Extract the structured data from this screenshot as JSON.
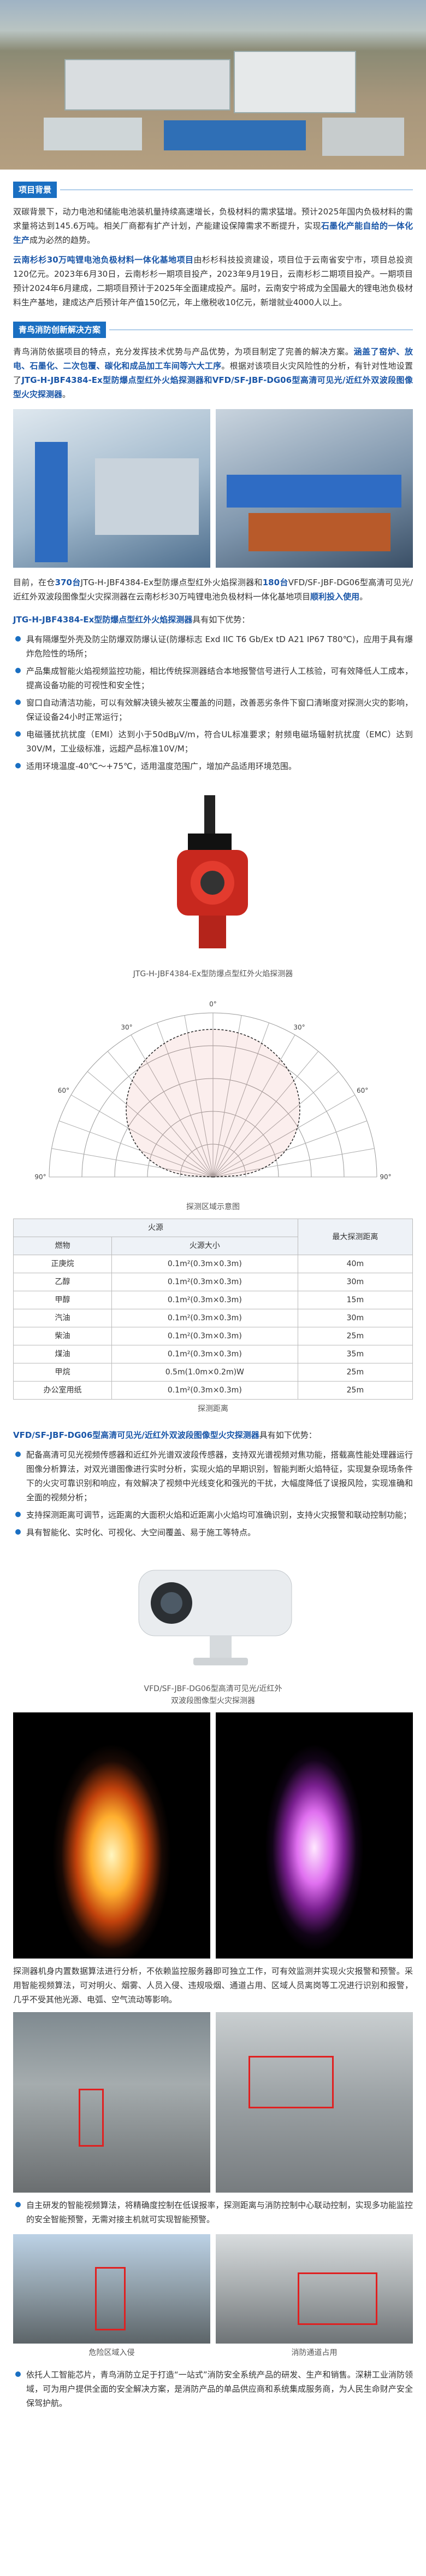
{
  "section1": {
    "tag": "项目背景"
  },
  "p1": {
    "parts": [
      {
        "t": "双碳背景下，动力电池和储能电池装机量持续高速增长，负极材料的需求猛增。预计2025年国内负极材料的需求量将达到145.6万吨。相关厂商都有扩产计划，产能建设保障需求不断提升，实现"
      },
      {
        "t": "石墨化产能自给的一体化生产",
        "b": true
      },
      {
        "t": "成为必然的趋势。"
      }
    ]
  },
  "p2": {
    "parts": [
      {
        "t": "云南杉杉30万吨锂电池负极材料一体化基地项目",
        "b": true
      },
      {
        "t": "由杉杉科技投资建设，项目位于云南省安宁市，项目总投资120亿元。2023年6月30日，云南杉杉一期项目投产，2023年9月19日，云南杉杉二期项目投产。一期项目预计2024年6月建成，二期项目预计于2025年全面建成投产。届时，云南安宁将成为全国最大的锂电池负极材料生产基地，建成达产后预计年产值150亿元，年上缴税收10亿元，新增就业4000人以上。"
      }
    ]
  },
  "section2": {
    "tag": "青鸟消防创新解决方案"
  },
  "p3": {
    "parts": [
      {
        "t": "青鸟消防依据项目的特点，充分发挥技术优势与产品优势，为项目制定了完善的解决方案。"
      },
      {
        "t": "涵盖了窑炉、放电、石墨化、二次包覆、碳化和成品加工车间等六大工序",
        "b": true
      },
      {
        "t": "。根据对该项目火灾风险性的分析，有针对性地设置了"
      },
      {
        "t": "JTG-H-JBF4384-Ex型防爆点型红外火焰探测器和VFD/SF-JBF-DG06型高清可见光/近红外双波段图像型火灾探测器",
        "b": true
      },
      {
        "t": "。"
      }
    ]
  },
  "p4": {
    "parts": [
      {
        "t": "目前，在仓"
      },
      {
        "t": "370台",
        "b": true
      },
      {
        "t": "JTG-H-JBF4384-Ex型防爆点型红外火焰探测器和"
      },
      {
        "t": "180台",
        "b": true
      },
      {
        "t": "VFD/SF-JBF-DG06型高清可见光/近红外双波段图像型火灾探测器在云南杉杉30万吨锂电池负极材料一体化基地项目"
      },
      {
        "t": "顺利投入使用",
        "b": true
      },
      {
        "t": "。"
      }
    ]
  },
  "h1": {
    "parts": [
      {
        "t": "JTG-H-JBF4384-Ex型防爆点型红外火焰探测器",
        "b": true
      },
      {
        "t": "具有如下优势："
      }
    ]
  },
  "bullets1": [
    "具有隔爆型外壳及防尘防爆双防爆认证(防爆标志 Exd IIC T6 Gb/Ex tD A21 IP67 T80℃)，应用于具有爆炸危险性的场所；",
    "产品集成智能火焰视频监控功能，相比传统探测器结合本地报警信号进行人工核验，可有效降低人工成本，提高设备功能的可视性和安全性；",
    "窗口自动清洁功能，可以有效解决镜头被灰尘覆盖的问题，改善恶劣条件下窗口清晰度对探测火灾的影响，保证设备24小时正常运行；",
    "电磁骚扰抗扰度（EMI）达到小于50dBμV/m，符合UL标准要求；射频电磁场辐射抗扰度（EMC）达到30V/M，工业级标准，远超产品标准10V/M；",
    "适用环境温度-40℃～+75℃，适用温度范围广，增加产品适用环境范围。"
  ],
  "caption_device1": "JTG-H-JBF4384-Ex型防爆点型红外火焰探测器",
  "diagram": {
    "angle_labels": [
      "90°",
      "60°",
      "30°",
      "0°",
      "30°",
      "60°",
      "90°"
    ]
  },
  "caption_diagram": "探测区域示意图",
  "table": {
    "header": [
      "火源",
      "最大探测距离"
    ],
    "subheader": [
      "燃物",
      "火源大小"
    ],
    "rows": [
      [
        "正庚烷",
        "0.1m²(0.3m×0.3m)",
        "40m"
      ],
      [
        "乙醇",
        "0.1m²(0.3m×0.3m)",
        "30m"
      ],
      [
        "甲醇",
        "0.1m²(0.3m×0.3m)",
        "15m"
      ],
      [
        "汽油",
        "0.1m²(0.3m×0.3m)",
        "30m"
      ],
      [
        "柴油",
        "0.1m²(0.3m×0.3m)",
        "25m"
      ],
      [
        "煤油",
        "0.1m²(0.3m×0.3m)",
        "35m"
      ],
      [
        "甲烷",
        "0.5m(1.0m×0.2m)W",
        "25m"
      ],
      [
        "办公室用纸",
        "0.1m²(0.3m×0.3m)",
        "25m"
      ]
    ]
  },
  "caption_table": "探测距离",
  "h2": {
    "parts": [
      {
        "t": "VFD/SF-JBF-DG06型高清可见光/近红外双波段图像型火灾探测器",
        "b": true
      },
      {
        "t": "具有如下优势："
      }
    ]
  },
  "bullets2": [
    "配备高清可见光视频传感器和近红外光谱双波段传感器，支持双光谱视频对焦功能，搭载高性能处理器运行图像分析算法，对双光谱图像进行实时分析，实现火焰的早期识别，智能判断火焰特征，实现复杂现场条件下的火灾可靠识别和响应，有效解决了视频中光线变化和强光的干扰，大幅度降低了误报风险，实现准确和全面的视频分析；",
    "支持探测距离可调节，远距离的大面积火焰和近距离小火焰均可准确识别，支持火灾报警和联动控制功能；",
    "具有智能化、实时化、可视化、大空间覆盖、易于施工等特点。"
  ],
  "caption_device2": [
    "VFD/SF-JBF-DG06型高清可见光/近红外",
    "双波段图像型火灾探测器"
  ],
  "p5": "探测器机身内置数据算法进行分析，不依赖监控服务器即可独立工作，可有效监测并实现火灾报警和预警。采用智能视频算法，可对明火、烟雾、人员入侵、违规吸烟、通道占用、区域人员离岗等工况进行识别和报警，几乎不受其他光源、电弧、空气流动等影响。",
  "bullets3": [
    "自主研发的智能视频算法，将精确度控制在低误报率，探测距离与消防控制中心联动控制，实现多功能监控的安全智能预警，无需对接主机就可实现智能预警。"
  ],
  "caption_photo1": "危险区域入侵",
  "caption_photo2": "消防通道占用",
  "bullets4": [
    "依托人工智能芯片，青鸟消防立足于打造“一站式”消防安全系统产品的研发、生产和销售。深耕工业消防领域，可为用户提供全面的安全解决方案，是消防产品的单品供应商和系统集成服务商，为人民生命财产安全保驾护航。"
  ]
}
